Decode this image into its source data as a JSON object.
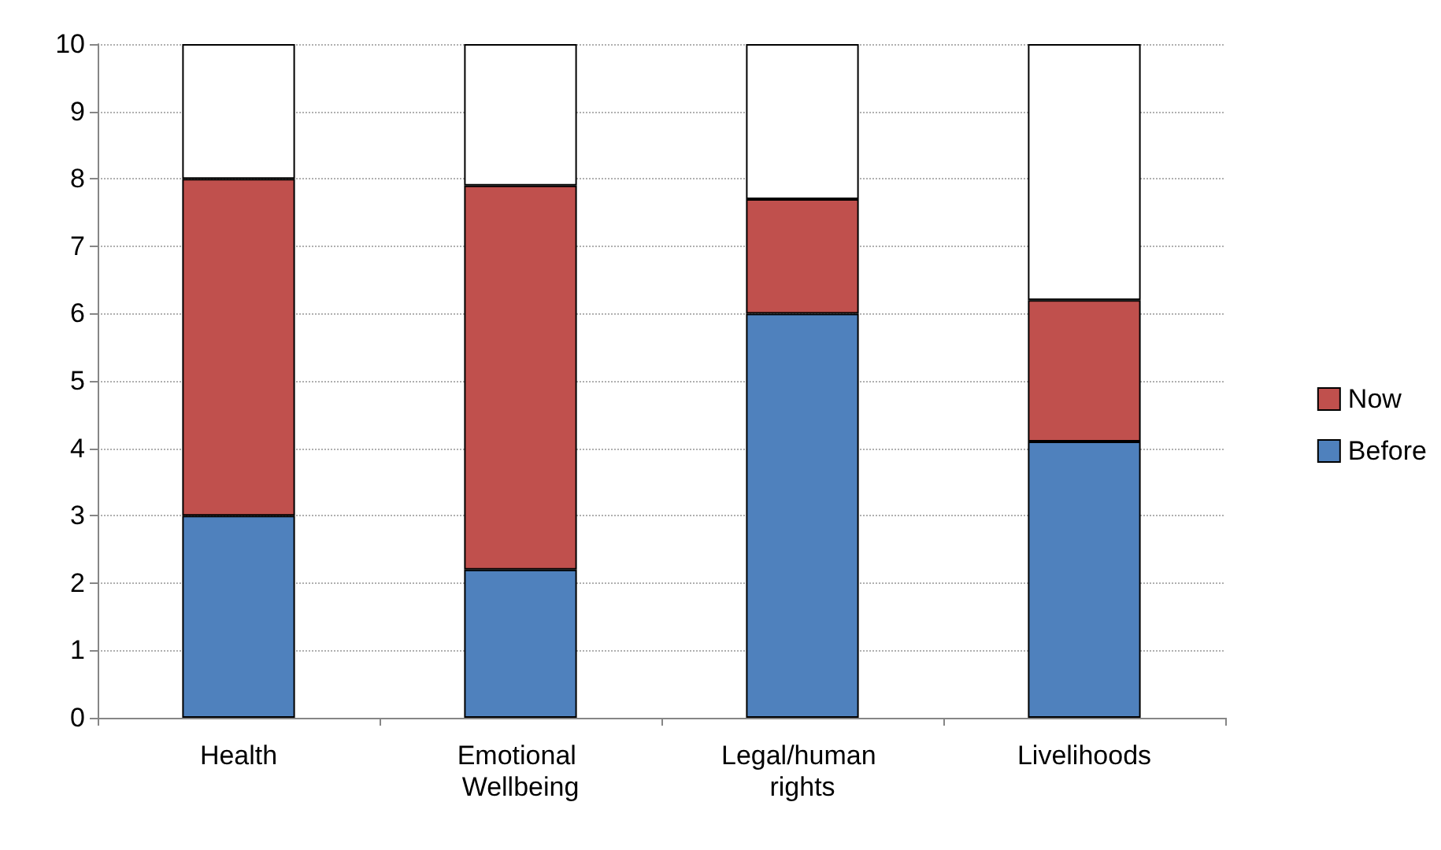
{
  "chart_data": {
    "type": "bar",
    "stacked": true,
    "categories": [
      "Health",
      "Emotional Wellbeing",
      "Legal/human rights",
      "Livelihoods"
    ],
    "series": [
      {
        "name": "Before",
        "color": "#4f81bd",
        "values": [
          3,
          2.2,
          6,
          4.1
        ]
      },
      {
        "name": "Now",
        "color": "#c0504d",
        "values": [
          5,
          5.7,
          1.7,
          2.1
        ]
      },
      {
        "color": "#ffffff",
        "values": [
          2,
          2.1,
          2.3,
          3.8
        ]
      }
    ],
    "ylim": [
      0,
      10
    ],
    "yticks": [
      0,
      1,
      2,
      3,
      4,
      5,
      6,
      7,
      8,
      9,
      10
    ],
    "grid": "y",
    "legend": "right"
  }
}
